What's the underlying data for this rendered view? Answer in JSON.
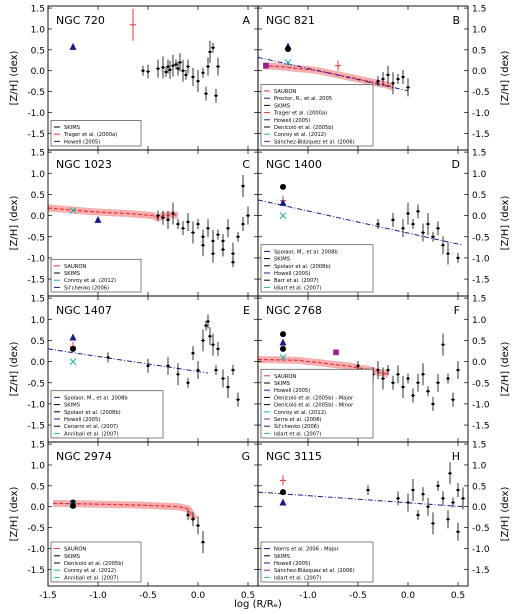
{
  "chart_data": {
    "type": "scatter",
    "xlabel": "log (R/Rₑ)",
    "ylabel": "[Z/H] (dex)",
    "xlim": [
      -1.5,
      0.6
    ],
    "ylim": [
      -1.9,
      1.55
    ],
    "xticks": [
      "-1.5",
      "-1.0",
      "-0.5",
      "0.0",
      "0.5"
    ],
    "yticks": [
      "1.5",
      "1.0",
      "0.5",
      "0.0",
      "-0.5",
      "-1.0",
      "-1.5"
    ],
    "ytick_values": [
      1.5,
      1.0,
      0.5,
      0.0,
      -0.5,
      -1.0,
      -1.5
    ],
    "xtick_values": [
      -1.5,
      -1.0,
      -0.5,
      0.0,
      0.5
    ],
    "legend_placement": "lower-left",
    "colors": {
      "sauron": "#e8343a",
      "skims": "#000000",
      "trager": "#e8343a",
      "howell": "#1a1a8c",
      "proctor": "#1a1a8c",
      "conroy": "#20b2aa",
      "sanchez": "#9b1d8f",
      "denicolo": "#000000"
    },
    "panels": [
      {
        "title": "NGC 720",
        "letter": "A",
        "legend": [
          "SKIMS",
          "Trager et al. (2000a)",
          "Howell (2005)"
        ],
        "sauron": [],
        "fit_line": [],
        "skims": [
          [
            -0.55,
            0.0
          ],
          [
            -0.5,
            -0.02
          ],
          [
            -0.4,
            0.05
          ],
          [
            -0.35,
            0.08
          ],
          [
            -0.32,
            -0.03
          ],
          [
            -0.3,
            0.1
          ],
          [
            -0.28,
            0.02
          ],
          [
            -0.25,
            0.12
          ],
          [
            -0.22,
            0.15
          ],
          [
            -0.2,
            0.05
          ],
          [
            -0.18,
            0.2
          ],
          [
            -0.15,
            0.0
          ],
          [
            -0.12,
            -0.1
          ],
          [
            -0.1,
            0.1
          ],
          [
            -0.05,
            -0.15
          ],
          [
            0.0,
            -0.25
          ],
          [
            0.05,
            -0.05
          ],
          [
            0.08,
            -0.55
          ],
          [
            0.1,
            0.1
          ],
          [
            0.12,
            0.45
          ],
          [
            0.15,
            0.55
          ],
          [
            0.18,
            -0.6
          ],
          [
            0.2,
            0.1
          ]
        ],
        "markers": [
          {
            "series": "Trager et al. (2000a)",
            "x": -0.65,
            "y": 1.1,
            "color": "#e8343a",
            "symbol": "plus"
          },
          {
            "series": "Howell (2005)",
            "x": -1.25,
            "y": 0.57,
            "color": "#1a1a8c",
            "symbol": "triangle"
          }
        ]
      },
      {
        "title": "NGC 821",
        "letter": "B",
        "legend": [
          "SAURON",
          "Proctor, R., et al. 2005",
          "SKIMS",
          "Trager et al. (2000a)",
          "Howell (2005)",
          "Denicoló et al. (2005b)",
          "Conroy et al. (2012)",
          "Sánchez-Blázquez et al. (2006)"
        ],
        "sauron": [
          [
            -1.45,
            0.12
          ],
          [
            -1.3,
            0.1
          ],
          [
            -1.2,
            0.08
          ],
          [
            -1.1,
            0.05
          ],
          [
            -1.0,
            0.03
          ],
          [
            -0.9,
            0.0
          ],
          [
            -0.8,
            -0.05
          ],
          [
            -0.7,
            -0.1
          ],
          [
            -0.6,
            -0.15
          ],
          [
            -0.5,
            -0.2
          ],
          [
            -0.4,
            -0.25
          ],
          [
            -0.3,
            -0.3
          ],
          [
            -0.2,
            -0.35
          ],
          [
            -0.15,
            -0.4
          ]
        ],
        "fit_line": [
          [
            -1.5,
            0.32
          ],
          [
            0.0,
            -0.48
          ]
        ],
        "skims": [
          [
            -0.3,
            -0.25
          ],
          [
            -0.25,
            -0.2
          ],
          [
            -0.2,
            -0.1
          ],
          [
            -0.15,
            -0.3
          ],
          [
            -0.1,
            -0.2
          ],
          [
            -0.05,
            -0.15
          ],
          [
            0.0,
            -0.4
          ]
        ],
        "markers": [
          {
            "series": "Trager et al. (2000a)",
            "x": -0.7,
            "y": 0.12,
            "color": "#e8343a",
            "symbol": "plus"
          },
          {
            "series": "Howell (2005)",
            "x": -1.2,
            "y": 0.58,
            "color": "#1a1a8c",
            "symbol": "triangle"
          },
          {
            "series": "Denicoló et al. (2005b)",
            "x": -1.2,
            "y": 0.52,
            "color": "#000000",
            "symbol": "circle"
          },
          {
            "series": "Conroy et al. (2012)",
            "x": -1.2,
            "y": 0.2,
            "color": "#20b2aa",
            "symbol": "x"
          },
          {
            "series": "Sánchez-Blázquez et al. (2006)",
            "x": -1.42,
            "y": 0.12,
            "color": "#9b1d8f",
            "symbol": "square"
          }
        ]
      },
      {
        "title": "NGC 1023",
        "letter": "C",
        "legend": [
          "SAURON",
          "SKIMS",
          "Conroy et al. (2012)",
          "Sil'chenko (2006)"
        ],
        "sauron": [
          [
            -1.5,
            0.18
          ],
          [
            -1.3,
            0.14
          ],
          [
            -1.1,
            0.1
          ],
          [
            -0.9,
            0.07
          ],
          [
            -0.7,
            0.05
          ],
          [
            -0.55,
            0.02
          ],
          [
            -0.45,
            0.0
          ],
          [
            -0.4,
            -0.06
          ],
          [
            -0.35,
            0.0
          ],
          [
            -0.25,
            0.02
          ],
          [
            -0.2,
            0.0
          ]
        ],
        "fit_line": [],
        "skims": [
          [
            -0.4,
            0.0
          ],
          [
            -0.35,
            -0.05
          ],
          [
            -0.3,
            -0.1
          ],
          [
            -0.25,
            0.05
          ],
          [
            -0.2,
            -0.2
          ],
          [
            -0.15,
            -0.3
          ],
          [
            -0.1,
            -0.15
          ],
          [
            -0.05,
            -0.4
          ],
          [
            0.0,
            -0.2
          ],
          [
            0.05,
            -0.5
          ],
          [
            0.1,
            -0.3
          ],
          [
            0.15,
            -0.6
          ],
          [
            0.2,
            -0.45
          ],
          [
            0.25,
            -0.8
          ],
          [
            0.3,
            -0.3
          ],
          [
            0.35,
            -0.9
          ],
          [
            0.4,
            -0.5
          ],
          [
            0.45,
            -0.2
          ],
          [
            0.5,
            0.0
          ],
          [
            0.45,
            0.7
          ],
          [
            0.35,
            -1.1
          ],
          [
            0.25,
            -0.6
          ],
          [
            0.15,
            -0.9
          ],
          [
            0.05,
            -0.7
          ]
        ],
        "markers": [
          {
            "series": "Conroy et al. (2012)",
            "x": -1.25,
            "y": 0.12,
            "color": "#20b2aa",
            "symbol": "x"
          },
          {
            "series": "Sil'chenko (2006)",
            "x": -1.0,
            "y": -0.1,
            "color": "#1a1a8c",
            "symbol": "triangle"
          }
        ]
      },
      {
        "title": "NGC 1400",
        "letter": "D",
        "legend": [
          "Spolaor, M., et al. 2008b",
          "SKIMS",
          "Spolaor et al. (2008b)",
          "Howell (2005)",
          "Barr et al. (2007)",
          "Idiart et al. (2007)"
        ],
        "sauron": [],
        "fit_line": [
          [
            -1.5,
            0.37
          ],
          [
            0.55,
            -0.7
          ]
        ],
        "skims": [
          [
            -0.3,
            -0.2
          ],
          [
            -0.15,
            -0.1
          ],
          [
            -0.05,
            -0.3
          ],
          [
            0.0,
            0.05
          ],
          [
            0.05,
            -0.2
          ],
          [
            0.1,
            0.1
          ],
          [
            0.15,
            -0.4
          ],
          [
            0.2,
            -0.2
          ],
          [
            0.25,
            -0.5
          ],
          [
            0.3,
            -0.3
          ],
          [
            0.35,
            -0.7
          ],
          [
            0.4,
            -0.9
          ],
          [
            0.5,
            -1.0
          ]
        ],
        "markers": [
          {
            "series": "Spolaor et al. (2008b)",
            "x": -1.25,
            "y": 0.35,
            "color": "#e8343a",
            "symbol": "plus"
          },
          {
            "series": "Howell (2005)",
            "x": -1.25,
            "y": 0.3,
            "color": "#1a1a8c",
            "symbol": "triangle"
          },
          {
            "series": "Barr et al. (2007)",
            "x": -1.25,
            "y": 0.68,
            "color": "#000000",
            "symbol": "circle"
          },
          {
            "series": "Idiart et al. (2007)",
            "x": -1.25,
            "y": 0.0,
            "color": "#20b2aa",
            "symbol": "x"
          }
        ]
      },
      {
        "title": "NGC 1407",
        "letter": "E",
        "legend": [
          "Spolaor, M., et al. 2008b",
          "SKIMS",
          "Spolaor et al. (2008b)",
          "Howell (2005)",
          "Cenarro et al. (2007)",
          "Annibali et al. (2007)"
        ],
        "sauron": [],
        "fit_line": [
          [
            -1.5,
            0.3
          ],
          [
            0.1,
            -0.27
          ]
        ],
        "skims": [
          [
            -0.9,
            0.1
          ],
          [
            -0.5,
            -0.1
          ],
          [
            -0.3,
            -0.1
          ],
          [
            -0.2,
            -0.3
          ],
          [
            -0.1,
            -0.5
          ],
          [
            -0.05,
            0.2
          ],
          [
            0.0,
            -0.2
          ],
          [
            0.05,
            0.5
          ],
          [
            0.08,
            0.85
          ],
          [
            0.1,
            0.95
          ],
          [
            0.12,
            0.6
          ],
          [
            0.15,
            0.4
          ],
          [
            0.18,
            -0.2
          ],
          [
            0.2,
            0.3
          ],
          [
            0.25,
            -0.4
          ],
          [
            0.3,
            -0.6
          ],
          [
            0.35,
            -0.2
          ],
          [
            0.4,
            -0.9
          ]
        ],
        "markers": [
          {
            "series": "Spolaor et al. (2008b)",
            "x": -1.25,
            "y": 0.35,
            "color": "#e8343a",
            "symbol": "plus"
          },
          {
            "series": "Howell (2005)",
            "x": -1.25,
            "y": 0.57,
            "color": "#1a1a8c",
            "symbol": "triangle"
          },
          {
            "series": "Cenarro et al. (2007)",
            "x": -1.25,
            "y": 0.3,
            "color": "#000000",
            "symbol": "circle"
          },
          {
            "series": "Annibali et al. (2007)",
            "x": -1.25,
            "y": 0.0,
            "color": "#20b2aa",
            "symbol": "x"
          }
        ]
      },
      {
        "title": "NGC 2768",
        "letter": "F",
        "legend": [
          "SAURON",
          "SKIMS",
          "Howell (2005)",
          "Denicoló et al. (2005b) - Major",
          "Denicoló et al. (2005b) - Minor",
          "Conroy et al. (2012)",
          "Serra et al. (2008)",
          "Sil'chenko (2006)",
          "Idiart et al. (2007)"
        ],
        "sauron": [
          [
            -1.5,
            0.05
          ],
          [
            -1.3,
            0.04
          ],
          [
            -1.1,
            0.03
          ],
          [
            -1.0,
            0.0
          ],
          [
            -0.9,
            -0.02
          ],
          [
            -0.8,
            -0.05
          ],
          [
            -0.7,
            -0.08
          ],
          [
            -0.6,
            -0.1
          ],
          [
            -0.5,
            -0.15
          ],
          [
            -0.4,
            -0.18
          ],
          [
            -0.3,
            -0.25
          ],
          [
            -0.2,
            -0.3
          ]
        ],
        "fit_line": [],
        "skims": [
          [
            -0.5,
            -0.1
          ],
          [
            -0.35,
            -0.3
          ],
          [
            -0.3,
            -0.2
          ],
          [
            -0.25,
            -0.4
          ],
          [
            -0.2,
            -0.2
          ],
          [
            -0.15,
            -0.5
          ],
          [
            -0.1,
            -0.3
          ],
          [
            -0.05,
            -0.6
          ],
          [
            0.0,
            -0.4
          ],
          [
            0.05,
            -0.8
          ],
          [
            0.1,
            -0.5
          ],
          [
            0.15,
            -0.3
          ],
          [
            0.2,
            -0.7
          ],
          [
            0.25,
            -1.0
          ],
          [
            0.3,
            -0.5
          ],
          [
            0.35,
            0.4
          ],
          [
            0.4,
            -0.4
          ],
          [
            0.45,
            -0.9
          ],
          [
            0.5,
            -0.2
          ]
        ],
        "markers": [
          {
            "series": "Howell (2005)",
            "x": -1.25,
            "y": 0.45,
            "color": "#1a1a8c",
            "symbol": "triangle"
          },
          {
            "series": "Denicoló et al. (2005b) - Major",
            "x": -1.25,
            "y": 0.65,
            "color": "#000000",
            "symbol": "circle"
          },
          {
            "series": "Denicoló et al. (2005b) - Minor",
            "x": -1.25,
            "y": 0.3,
            "color": "#000000",
            "symbol": "circle"
          },
          {
            "series": "Serra et al. (2008)",
            "x": -0.72,
            "y": 0.22,
            "color": "#9b1d8f",
            "symbol": "square"
          },
          {
            "series": "Conroy et al. (2012)",
            "x": -1.25,
            "y": 0.1,
            "color": "#20b2aa",
            "symbol": "x"
          }
        ]
      },
      {
        "title": "NGC 2974",
        "letter": "G",
        "legend": [
          "SAURON",
          "SKIMS",
          "Denicoló et al. (2005b)",
          "Conroy et al. (2012)",
          "Annibali et al. (2007)"
        ],
        "sauron": [
          [
            -1.45,
            0.08
          ],
          [
            -1.2,
            0.07
          ],
          [
            -1.0,
            0.06
          ],
          [
            -0.8,
            0.05
          ],
          [
            -0.6,
            0.04
          ],
          [
            -0.4,
            0.02
          ],
          [
            -0.2,
            0.0
          ],
          [
            -0.1,
            -0.05
          ],
          [
            -0.05,
            -0.25
          ],
          [
            -0.03,
            -0.3
          ]
        ],
        "fit_line": [],
        "skims": [
          [
            -0.1,
            -0.2
          ],
          [
            -0.05,
            -0.3
          ],
          [
            0.0,
            -0.45
          ],
          [
            0.05,
            -0.85
          ]
        ],
        "markers": [
          {
            "series": "Denicoló et al. (2005b)",
            "x": -1.25,
            "y": 0.1,
            "color": "#000000",
            "symbol": "circle"
          },
          {
            "series": "Conroy et al. (2012)",
            "x": -1.25,
            "y": 0.05,
            "color": "#20b2aa",
            "symbol": "x"
          },
          {
            "series": "Annibali et al. (2007)",
            "x": -1.25,
            "y": 0.02,
            "color": "#000000",
            "symbol": "circle"
          }
        ]
      },
      {
        "title": "NGC 3115",
        "letter": "H",
        "legend": [
          "Norris et al. 2006 - Major",
          "SKIMS",
          "Howell (2005)",
          "Sánchez-Blázquez et al. (2006)",
          "Idiart et al. (2007)"
        ],
        "sauron": [],
        "fit_line": [
          [
            -1.5,
            0.35
          ],
          [
            0.55,
            0.0
          ]
        ],
        "skims": [
          [
            -0.4,
            0.4
          ],
          [
            -0.1,
            0.2
          ],
          [
            0.0,
            0.1
          ],
          [
            0.05,
            0.4
          ],
          [
            0.1,
            -0.2
          ],
          [
            0.15,
            0.3
          ],
          [
            0.2,
            0.0
          ],
          [
            0.25,
            -0.4
          ],
          [
            0.3,
            0.5
          ],
          [
            0.35,
            0.2
          ],
          [
            0.4,
            -0.3
          ],
          [
            0.42,
            0.8
          ],
          [
            0.45,
            0.1
          ],
          [
            0.5,
            0.4
          ],
          [
            0.5,
            -0.6
          ],
          [
            0.55,
            0.2
          ]
        ],
        "markers": [
          {
            "series": "Howell (2005)",
            "x": -1.25,
            "y": 0.63,
            "color": "#e8343a",
            "symbol": "plus"
          },
          {
            "series": "Sánchez-Blázquez et al. (2006)",
            "x": -1.25,
            "y": 0.35,
            "color": "#000000",
            "symbol": "circle"
          },
          {
            "series": "Idiart et al. (2007)",
            "x": -1.25,
            "y": 0.1,
            "color": "#1a1a8c",
            "symbol": "triangle"
          }
        ]
      }
    ]
  }
}
